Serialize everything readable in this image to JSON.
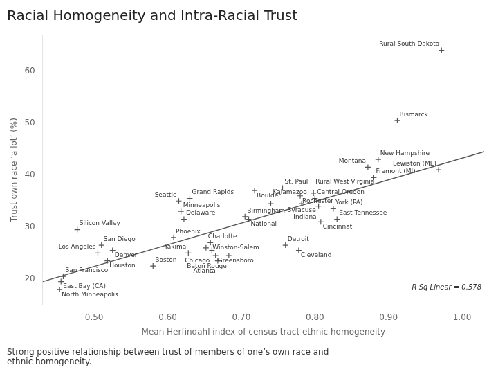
{
  "chart_data": {
    "type": "scatter",
    "title": "Racial Homogeneity and Intra-Racial Trust",
    "subtitle": "Strong positive relationship between trust of members of one’s own race and\nethnic homogeneity.",
    "xlabel": "Mean Herfindahl index of census tract ethnic homogeneity",
    "ylabel": "Trust own race ‘a lot’ (%)",
    "xlim": [
      0.43,
      1.03
    ],
    "ylim": [
      15,
      67
    ],
    "xticks": [
      {
        "value": 0.5,
        "label": "0.50"
      },
      {
        "value": 0.6,
        "label": "0.60"
      },
      {
        "value": 0.7,
        "label": "0.70"
      },
      {
        "value": 0.8,
        "label": "0.80"
      },
      {
        "value": 0.9,
        "label": "0.90"
      },
      {
        "value": 1.0,
        "label": "1.00"
      }
    ],
    "yticks": [
      20,
      30,
      40,
      50,
      60
    ],
    "grid": false,
    "annotations": [
      "R Sq Linear = 0.578"
    ],
    "series": [
      {
        "type": "scatter",
        "color": "#555555",
        "marker": "plus",
        "x": [
          0.455,
          0.453,
          0.458,
          0.477,
          0.505,
          0.51,
          0.518,
          0.525,
          0.58,
          0.608,
          0.615,
          0.618,
          0.622,
          0.63,
          0.652,
          0.658,
          0.66,
          0.628,
          0.665,
          0.668,
          0.683,
          0.705,
          0.71,
          0.718,
          0.74,
          0.756,
          0.78,
          0.782,
          0.8,
          0.805,
          0.808,
          0.825,
          0.83,
          0.798,
          0.76,
          0.778,
          0.886,
          0.872,
          0.88,
          0.968,
          0.912,
          0.972
        ],
        "values": [
          19.5,
          18.0,
          20.5,
          29.5,
          25.0,
          26.5,
          23.5,
          25.5,
          22.5,
          28.0,
          35.0,
          33.0,
          31.5,
          35.5,
          26.0,
          27.0,
          25.5,
          25.0,
          24.5,
          23.5,
          24.5,
          32.0,
          31.5,
          37.0,
          34.5,
          37.5,
          36.0,
          34.5,
          35.5,
          34.0,
          31.0,
          33.5,
          31.5,
          36.5,
          26.5,
          25.5,
          43.0,
          41.5,
          39.5,
          41.0,
          50.5,
          64.0
        ],
        "labels": [
          "East Bay (CA)",
          "North Minneapolis",
          "San Francisco",
          "Silicon Valley",
          "Los Angeles",
          "San Diego",
          "Houston",
          "Denver",
          "Boston",
          "Phoenix",
          "Seattle",
          "Minneapolis",
          "Delaware",
          "Grand Rapids",
          "Charlotte",
          "Winston-Salem",
          "Chicago",
          "Yakima",
          "Greensboro",
          "Atlanta",
          "Baton Rouge",
          "Birmingham",
          "National",
          "Boulder",
          "Kalamazoo",
          "St. Paul",
          "Rochester",
          "Syracuse",
          "Central Oregon",
          "Indiana",
          "Cincinnati",
          "York (PA)",
          "East Tennessee",
          "Rural West Virginia",
          "Detroit",
          "Cleveland",
          "New Hampshire",
          "Montana",
          "Fremont (MI)",
          "Lewiston (ME)",
          "Bismarck",
          "Rural South Dakota"
        ]
      },
      {
        "type": "line",
        "color": "#555555",
        "x": [
          0.43,
          1.03
        ],
        "values": [
          19.5,
          44.5
        ]
      }
    ]
  }
}
